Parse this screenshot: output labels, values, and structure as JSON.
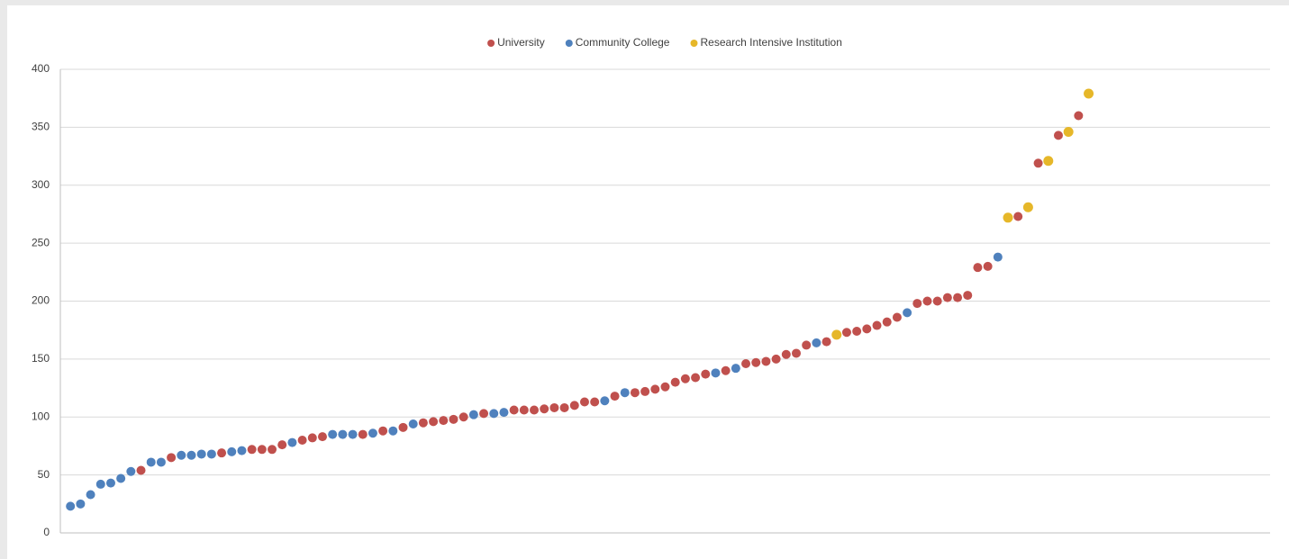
{
  "chart_data": {
    "type": "scatter",
    "legend": "top",
    "grid": true,
    "xlim": [
      0,
      120
    ],
    "ylim": [
      0,
      400
    ],
    "yticks": [
      0,
      50,
      100,
      150,
      200,
      250,
      300,
      350,
      400
    ],
    "series": [
      {
        "name": "University",
        "color": "#c0504d",
        "x": [
          8,
          11,
          16,
          19,
          20,
          21,
          22,
          24,
          25,
          26,
          30,
          32,
          34,
          36,
          37,
          38,
          39,
          40,
          42,
          45,
          46,
          47,
          48,
          49,
          50,
          51,
          52,
          53,
          55,
          57,
          58,
          59,
          60,
          61,
          62,
          63,
          64,
          66,
          68,
          69,
          70,
          71,
          72,
          73,
          74,
          76,
          78,
          79,
          80,
          81,
          82,
          83,
          85,
          86,
          87,
          88,
          89,
          90,
          91,
          92,
          95,
          97,
          99,
          101
        ],
        "values": [
          54,
          65,
          69,
          72,
          72,
          72,
          76,
          80,
          82,
          83,
          85,
          88,
          91,
          95,
          96,
          97,
          98,
          100,
          103,
          106,
          106,
          106,
          107,
          108,
          108,
          110,
          113,
          113,
          118,
          121,
          122,
          124,
          126,
          130,
          133,
          134,
          137,
          140,
          146,
          147,
          148,
          150,
          154,
          155,
          162,
          165,
          173,
          174,
          176,
          179,
          182,
          186,
          198,
          200,
          200,
          203,
          203,
          205,
          229,
          230,
          273,
          319,
          343,
          360
        ]
      },
      {
        "name": "Community College",
        "color": "#4f81bd",
        "x": [
          1,
          2,
          3,
          4,
          5,
          6,
          7,
          9,
          10,
          12,
          13,
          14,
          15,
          17,
          18,
          23,
          27,
          28,
          29,
          31,
          33,
          35,
          41,
          43,
          44,
          54,
          56,
          65,
          67,
          75,
          84,
          93
        ],
        "values": [
          23,
          25,
          33,
          42,
          43,
          47,
          53,
          61,
          61,
          67,
          67,
          68,
          68,
          70,
          71,
          78,
          85,
          85,
          85,
          86,
          88,
          94,
          102,
          103,
          104,
          114,
          121,
          138,
          142,
          164,
          190,
          238
        ]
      },
      {
        "name": "Research Intensive Institution",
        "color": "#e6b729",
        "x": [
          77,
          94,
          96,
          98,
          100,
          102
        ],
        "values": [
          171,
          272,
          281,
          321,
          346,
          379
        ]
      }
    ]
  }
}
